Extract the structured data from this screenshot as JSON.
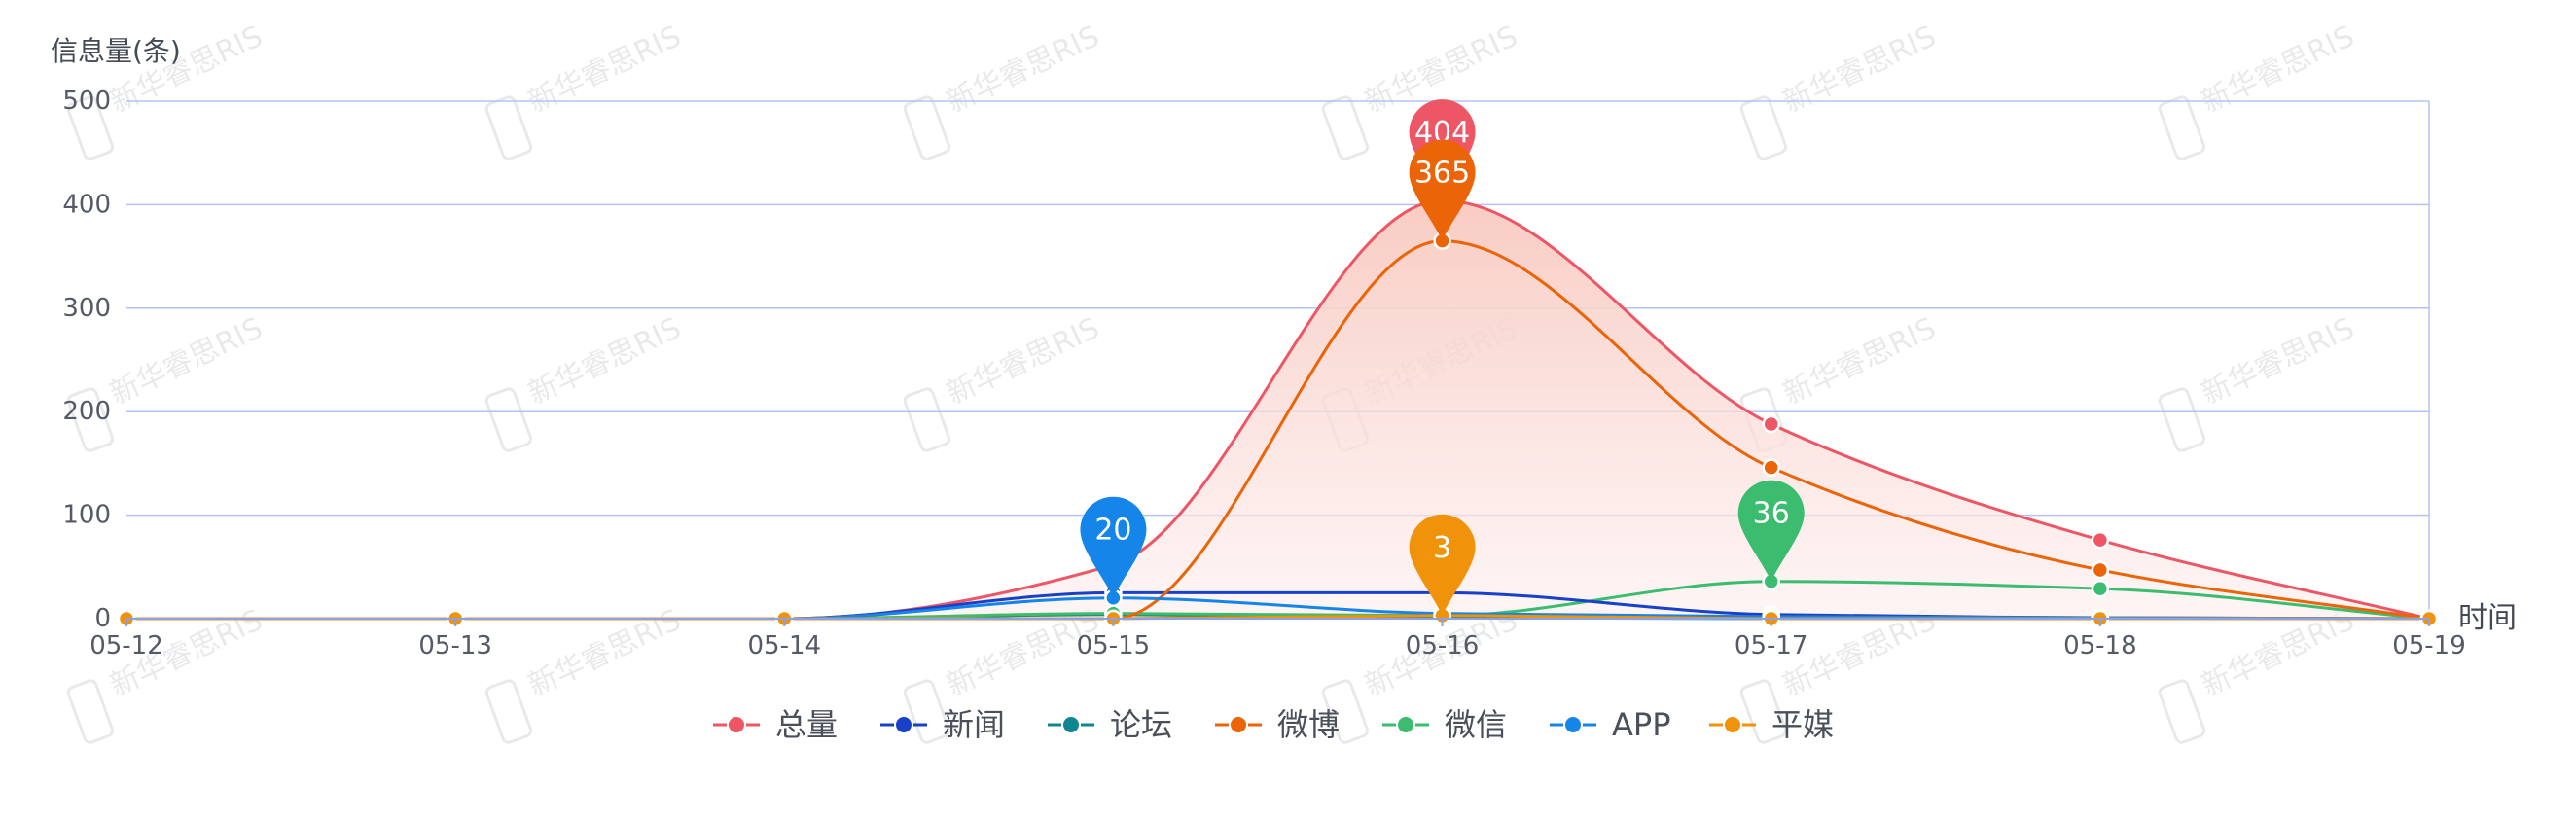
{
  "chart_data": {
    "type": "line",
    "ylabel": "信息量(条)",
    "xlabel": "时间",
    "ylim": [
      0,
      500
    ],
    "yticks": [
      0,
      100,
      200,
      300,
      400,
      500
    ],
    "categories": [
      "05-12",
      "05-13",
      "05-14",
      "05-15",
      "05-16",
      "05-17",
      "05-18",
      "05-19"
    ],
    "smooth": true,
    "grid": true,
    "legend_position": "bottom",
    "watermark": "新华睿思RIS",
    "series": [
      {
        "name": "总量",
        "color": "#ee5565",
        "values": [
          0,
          0,
          0,
          52,
          404,
          188,
          76,
          0
        ],
        "area": true,
        "pin": {
          "index": 4,
          "label": "404"
        }
      },
      {
        "name": "新闻",
        "color": "#1940c8",
        "values": [
          0,
          0,
          0,
          25,
          25,
          4,
          1,
          0
        ]
      },
      {
        "name": "论坛",
        "color": "#0f8691",
        "values": [
          0,
          0,
          0,
          4,
          1,
          0,
          0,
          0
        ]
      },
      {
        "name": "微博",
        "color": "#ec6408",
        "values": [
          0,
          0,
          0,
          0,
          365,
          146,
          47,
          0
        ],
        "pin": {
          "index": 4,
          "label": "365"
        }
      },
      {
        "name": "微信",
        "color": "#3bbc6e",
        "values": [
          0,
          0,
          0,
          5,
          3,
          36,
          29,
          0
        ],
        "pin": {
          "index": 5,
          "label": "36"
        }
      },
      {
        "name": "APP",
        "color": "#1585ea",
        "values": [
          0,
          0,
          0,
          20,
          5,
          2,
          1,
          0
        ],
        "pin": {
          "index": 3,
          "label": "20"
        }
      },
      {
        "name": "平媒",
        "color": "#f0930a",
        "values": [
          0,
          0,
          0,
          0,
          3,
          0,
          0,
          0
        ],
        "pin": {
          "index": 4,
          "label": "3"
        }
      }
    ]
  }
}
